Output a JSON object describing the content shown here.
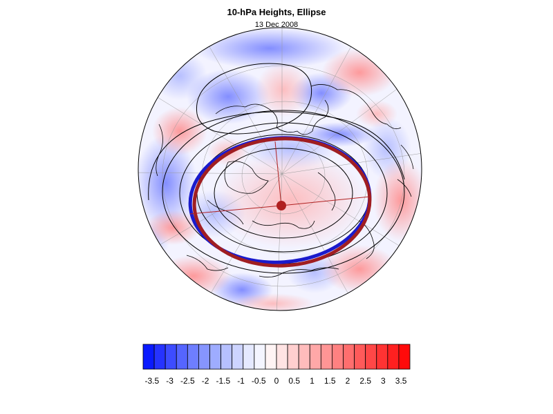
{
  "map": {
    "title": "10-hPa Heights, Ellipse",
    "date": "13 Dec 2008",
    "projection": "polar stereographic, north pole",
    "shading_field": "height anomaly",
    "contour_color": "#000000",
    "ellipse_color_1": "#1a1acc",
    "ellipse_color_2": "#a01e22",
    "center_marker_color": "#b02020"
  },
  "colorbar": {
    "colors": [
      "#0a1aff",
      "#2633ff",
      "#3d4cff",
      "#5565ff",
      "#6e7eff",
      "#8695ff",
      "#9eacff",
      "#b6c0ff",
      "#cdd4ff",
      "#e5e9ff",
      "#f4f5ff",
      "#fff4f4",
      "#ffe3e3",
      "#ffcfcf",
      "#ffbcbc",
      "#ffa8a8",
      "#ff9595",
      "#ff8181",
      "#ff6e6e",
      "#ff5a5a",
      "#ff4747",
      "#ff3333",
      "#ff2020",
      "#ff0a0a"
    ],
    "labels": [
      "-3.5",
      "-3",
      "-2.5",
      "-2",
      "-1.5",
      "-1",
      "-0.5",
      "0",
      "0.5",
      "1",
      "1.5",
      "2",
      "2.5",
      "3",
      "3.5"
    ]
  }
}
